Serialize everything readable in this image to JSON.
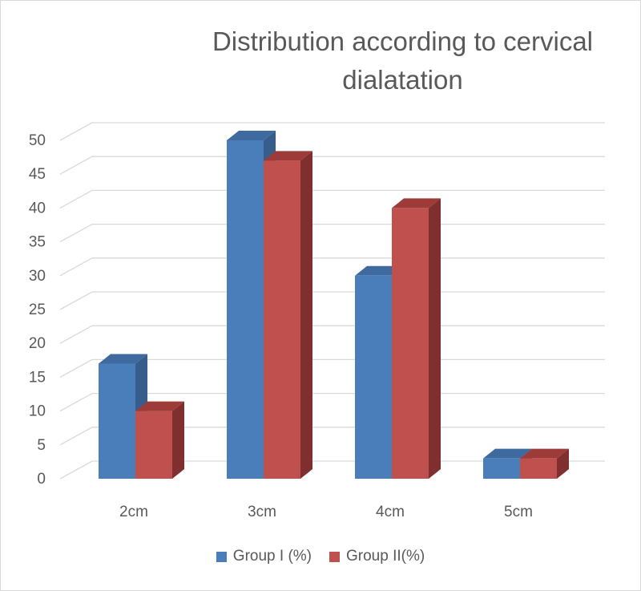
{
  "chart_data": {
    "type": "bar",
    "title": "Distribution according to cervical dialatation",
    "categories": [
      "2cm",
      "3cm",
      "4cm",
      "5cm"
    ],
    "series": [
      {
        "name": "Group I (%)",
        "values": [
          17,
          50,
          30,
          3
        ],
        "color": "#4a7ebb",
        "side_color": "#375d8b",
        "top_color": "#3e6aa0"
      },
      {
        "name": "Group II(%)",
        "values": [
          10,
          47,
          40,
          3
        ],
        "color": "#c0504d",
        "side_color": "#7f2f2d",
        "top_color": "#9c3b38"
      }
    ],
    "ylim": [
      0,
      50
    ],
    "yticks": [
      0,
      5,
      10,
      15,
      20,
      25,
      30,
      35,
      40,
      45,
      50
    ],
    "xlabel": "",
    "ylabel": "",
    "grid": true,
    "legend_position": "bottom",
    "style": "3d-clustered-column"
  }
}
